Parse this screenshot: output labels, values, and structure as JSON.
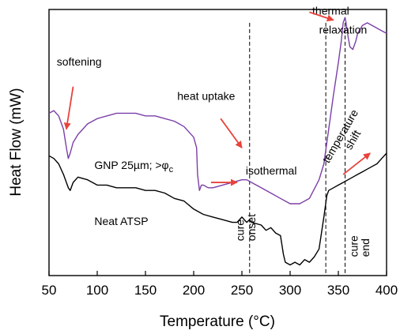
{
  "chart_data": {
    "type": "line",
    "xlabel": "Temperature (°C)",
    "ylabel": "Heat Flow (mW)",
    "xlim": [
      50,
      400
    ],
    "xticks": [
      50,
      100,
      150,
      200,
      250,
      300,
      350,
      400
    ],
    "yticks_shown": false,
    "grid": false,
    "series": [
      {
        "name": "GNP 25µm; >φc",
        "color": "#7b3fa8",
        "x": [
          50,
          55,
          60,
          65,
          68,
          70,
          72,
          75,
          80,
          90,
          100,
          110,
          120,
          130,
          140,
          150,
          160,
          170,
          180,
          190,
          200,
          203,
          204,
          206,
          208,
          210,
          215,
          220,
          230,
          240,
          250,
          255,
          260,
          270,
          280,
          290,
          300,
          310,
          320,
          330,
          335,
          340,
          345,
          350,
          353,
          355,
          357,
          358,
          360,
          362,
          365,
          368,
          370,
          375,
          380,
          385,
          390,
          395,
          400
        ],
        "y": [
          0.61,
          0.62,
          0.6,
          0.55,
          0.48,
          0.44,
          0.46,
          0.5,
          0.53,
          0.57,
          0.59,
          0.6,
          0.61,
          0.61,
          0.61,
          0.6,
          0.6,
          0.59,
          0.58,
          0.56,
          0.52,
          0.48,
          0.38,
          0.32,
          0.34,
          0.34,
          0.33,
          0.33,
          0.34,
          0.35,
          0.36,
          0.36,
          0.35,
          0.33,
          0.31,
          0.29,
          0.27,
          0.27,
          0.29,
          0.36,
          0.42,
          0.55,
          0.68,
          0.8,
          0.88,
          0.95,
          0.97,
          0.95,
          0.9,
          0.86,
          0.85,
          0.88,
          0.91,
          0.94,
          0.95,
          0.94,
          0.93,
          0.92,
          0.91
        ]
      },
      {
        "name": "Neat ATSP",
        "color": "#000000",
        "x": [
          50,
          55,
          60,
          65,
          70,
          72,
          75,
          80,
          90,
          100,
          110,
          120,
          130,
          140,
          150,
          160,
          170,
          180,
          190,
          200,
          210,
          220,
          230,
          240,
          245,
          250,
          255,
          258,
          260,
          270,
          275,
          280,
          285,
          290,
          293,
          295,
          300,
          305,
          310,
          315,
          320,
          325,
          330,
          335,
          338,
          340,
          345,
          350,
          355,
          360,
          365,
          370,
          375,
          380,
          385,
          390,
          395,
          400
        ],
        "y": [
          0.45,
          0.44,
          0.42,
          0.38,
          0.33,
          0.32,
          0.35,
          0.37,
          0.36,
          0.34,
          0.34,
          0.33,
          0.33,
          0.33,
          0.32,
          0.32,
          0.31,
          0.29,
          0.28,
          0.25,
          0.23,
          0.22,
          0.21,
          0.2,
          0.2,
          0.22,
          0.2,
          0.21,
          0.2,
          0.19,
          0.17,
          0.18,
          0.16,
          0.15,
          0.08,
          0.05,
          0.04,
          0.05,
          0.04,
          0.06,
          0.05,
          0.07,
          0.1,
          0.22,
          0.3,
          0.32,
          0.33,
          0.34,
          0.35,
          0.36,
          0.37,
          0.38,
          0.39,
          0.4,
          0.41,
          0.42,
          0.44,
          0.46
        ]
      }
    ],
    "dashed_lines_x": [
      258,
      337,
      357
    ],
    "series_labels": [
      {
        "text": "GNP 25µm; >φ",
        "sub": "c",
        "x": 97,
        "y": 0.4
      },
      {
        "text": "Neat ATSP",
        "x": 97,
        "y": 0.19
      }
    ],
    "annotations": [
      {
        "text": "softening",
        "x": 58,
        "y": 0.79,
        "arrow_from": [
          75,
          0.71
        ],
        "arrow_to": [
          68,
          0.55
        ]
      },
      {
        "text": "heat uptake",
        "x": 183,
        "y": 0.66,
        "arrow_from": [
          228,
          0.59
        ],
        "arrow_to": [
          250,
          0.48
        ]
      },
      {
        "text": "isothermal",
        "x": 254,
        "y": 0.38,
        "arrow_from": [
          218,
          0.35
        ],
        "arrow_to": [
          245,
          0.35
        ]
      },
      {
        "text": "thermal",
        "x": 323,
        "y": 0.98
      },
      {
        "text": "relaxation",
        "x": 330,
        "y": 0.91
      },
      {
        "text": "temperature",
        "x": 340,
        "y": 0.42,
        "rotate": -60
      },
      {
        "text": "shift",
        "x": 363,
        "y": 0.47,
        "rotate": -60
      },
      {
        "text": "cure",
        "x": 252,
        "y": 0.13,
        "rotate": -90
      },
      {
        "text": "onset",
        "x": 264,
        "y": 0.13,
        "rotate": -90
      },
      {
        "text": "cure",
        "x": 370,
        "y": 0.07,
        "rotate": -90
      },
      {
        "text": "end",
        "x": 382,
        "y": 0.07,
        "rotate": -90
      }
    ],
    "arrows_unlabeled": [
      {
        "from": [
          320,
          0.99
        ],
        "to": [
          345,
          0.96
        ]
      },
      {
        "from": [
          355,
          0.38
        ],
        "to": [
          383,
          0.46
        ]
      }
    ]
  }
}
